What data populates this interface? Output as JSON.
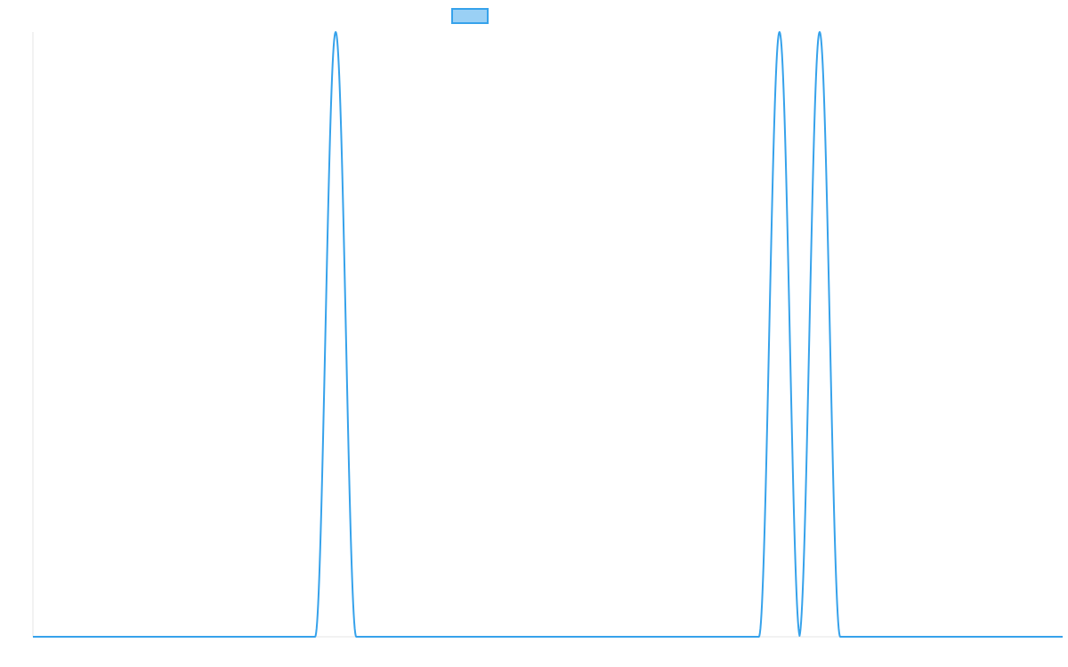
{
  "chart_data": {
    "type": "line",
    "title": "",
    "xlabel": "",
    "ylabel": "",
    "legend": {
      "placement": "top-center",
      "entries": [
        {
          "name": "",
          "color": "#36A2EB",
          "fill": "#9AD0F5"
        }
      ]
    },
    "xlim": [
      0,
      1000
    ],
    "ylim": [
      0,
      1
    ],
    "grid": false,
    "series": [
      {
        "name": "",
        "color": "#36A2EB",
        "peaks": [
          {
            "center": 294,
            "half_width": 20,
            "height": 1
          },
          {
            "center": 725,
            "half_width": 20,
            "height": 1
          },
          {
            "center": 764,
            "half_width": 20,
            "height": 1
          }
        ],
        "baseline": 0
      }
    ]
  }
}
